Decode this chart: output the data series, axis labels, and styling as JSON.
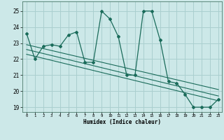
{
  "xlabel": "Humidex (Indice chaleur)",
  "bg_color": "#cce8e8",
  "grid_color": "#aacfcf",
  "line_color": "#1a6b5a",
  "xlim": [
    -0.5,
    23.4
  ],
  "ylim": [
    18.7,
    25.6
  ],
  "yticks": [
    19,
    20,
    21,
    22,
    23,
    24,
    25
  ],
  "xticks": [
    0,
    1,
    2,
    3,
    4,
    5,
    6,
    7,
    8,
    9,
    10,
    11,
    12,
    13,
    14,
    15,
    16,
    17,
    18,
    19,
    20,
    21,
    22,
    23
  ],
  "series1_x": [
    0,
    1,
    2,
    3,
    4,
    5,
    6,
    7,
    8,
    9,
    10,
    11,
    12,
    13,
    14,
    15,
    16,
    17,
    18,
    19,
    20,
    21,
    22,
    23
  ],
  "series1_y": [
    23.6,
    22.0,
    22.8,
    22.9,
    22.8,
    23.5,
    23.7,
    21.8,
    21.8,
    25.0,
    24.5,
    23.4,
    21.0,
    21.0,
    25.0,
    25.0,
    23.2,
    20.6,
    20.5,
    19.8,
    19.0,
    19.0,
    19.0,
    19.5
  ],
  "trend1_x": [
    0,
    23
  ],
  "trend1_y": [
    22.9,
    20.1
  ],
  "trend2_x": [
    0,
    23
  ],
  "trend2_y": [
    22.6,
    19.7
  ],
  "trend3_x": [
    0,
    23
  ],
  "trend3_y": [
    22.3,
    19.4
  ]
}
